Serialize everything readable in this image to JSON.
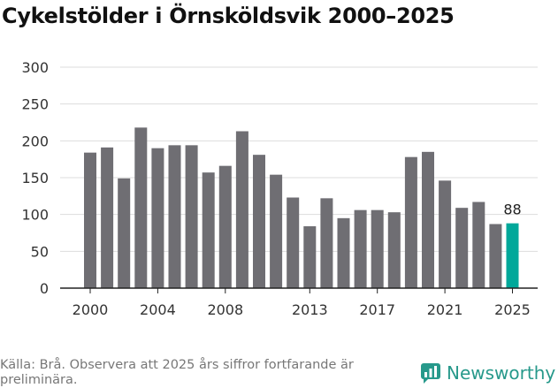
{
  "chart_data": {
    "type": "bar",
    "title": "Cykelstölder i Örnsköldsvik 2000–2025",
    "xlabel": "",
    "ylabel": "",
    "ylim": [
      0,
      300
    ],
    "yticks": [
      0,
      50,
      100,
      150,
      200,
      250,
      300
    ],
    "xtick_labels": [
      "2000",
      "2004",
      "2008",
      "2013",
      "2017",
      "2021",
      "2025"
    ],
    "categories": [
      "2000",
      "2001",
      "2002",
      "2003",
      "2004",
      "2005",
      "2006",
      "2007",
      "2008",
      "2009",
      "2010",
      "2011",
      "2012",
      "2013",
      "2014",
      "2015",
      "2016",
      "2017",
      "2018",
      "2019",
      "2020",
      "2021",
      "2022",
      "2023",
      "2024",
      "2025"
    ],
    "values": [
      184,
      191,
      149,
      218,
      190,
      194,
      194,
      157,
      166,
      213,
      181,
      154,
      123,
      84,
      122,
      95,
      106,
      106,
      103,
      178,
      185,
      146,
      109,
      117,
      87,
      88
    ],
    "highlight_category": "2025",
    "highlight_label": "88",
    "colors": {
      "bar": "#6f6e73",
      "highlight": "#00a89a",
      "grid": "#dddddd",
      "axis": "#222222"
    }
  },
  "footer": {
    "source": "Källa: Brå. Observera att 2025 års siffror fortfarande är preliminära.",
    "brand": "Newsworthy",
    "brand_color": "#27998b",
    "brand_icon": "bar-chart-bubble-icon"
  }
}
